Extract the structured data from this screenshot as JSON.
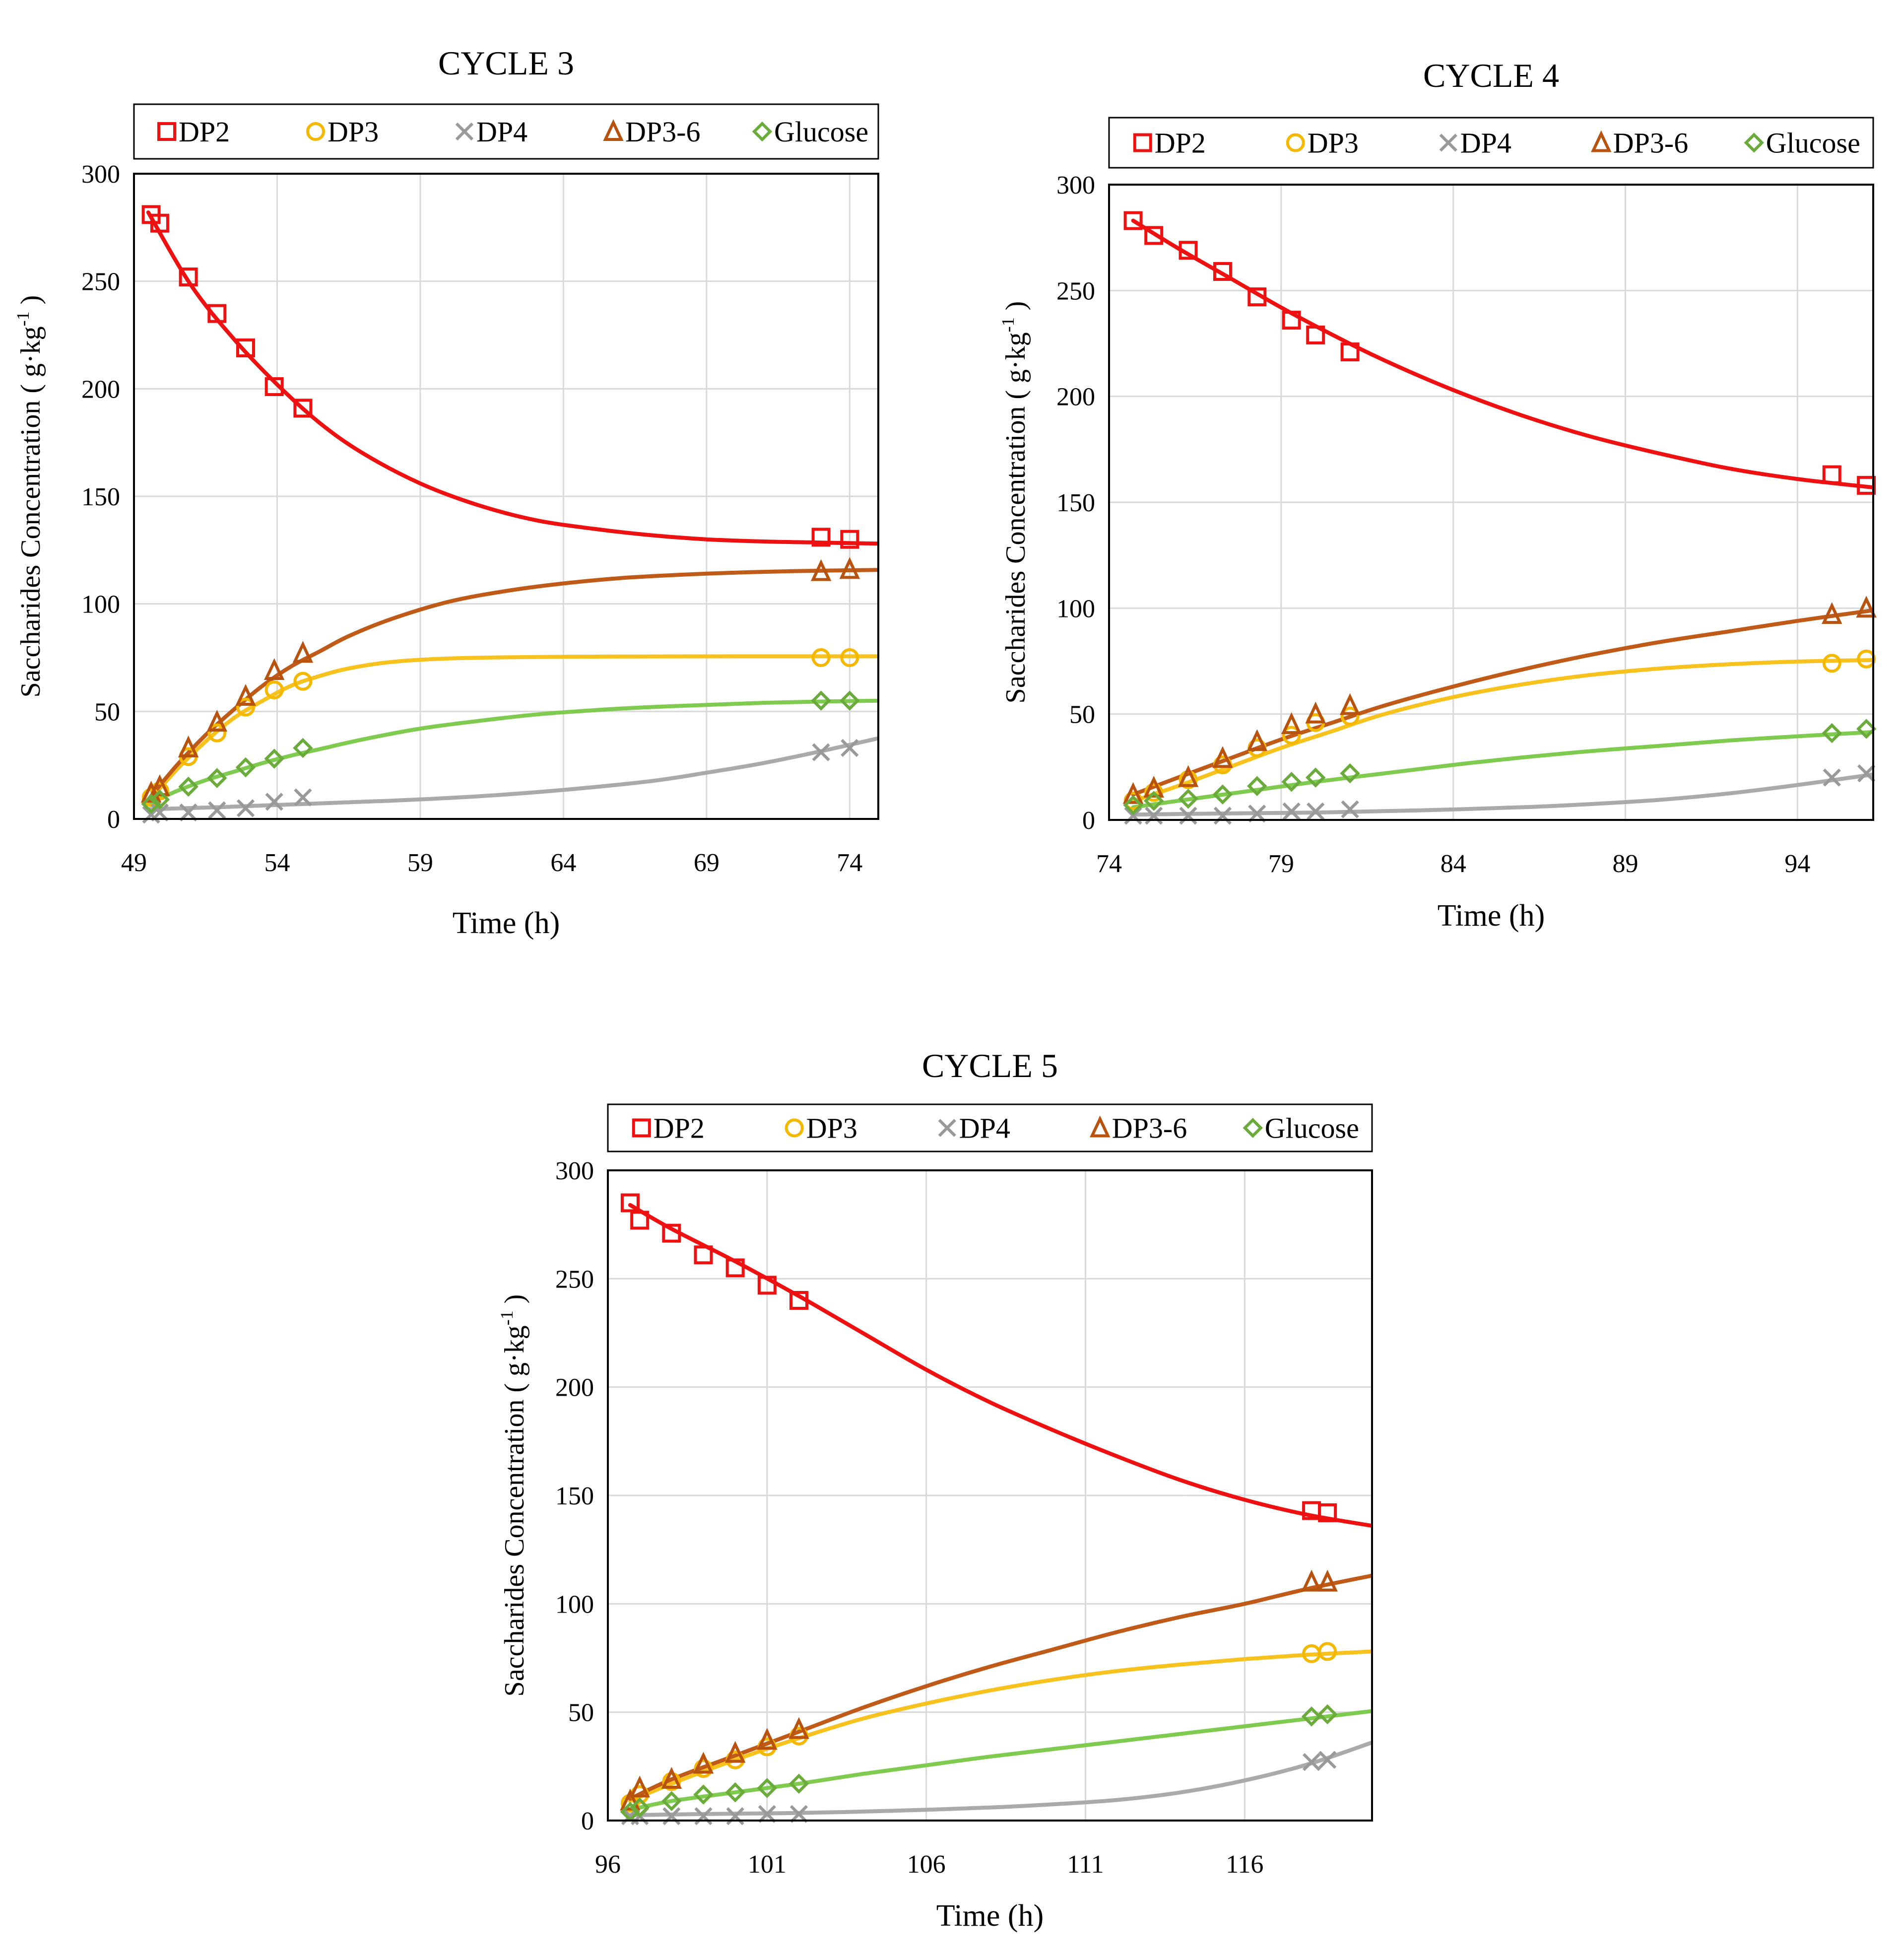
{
  "series_styles": {
    "DP2": {
      "color": "#ee1111",
      "marker": "square"
    },
    "DP3": {
      "color": "#f5b800",
      "marker": "circle"
    },
    "DP4": {
      "color": "#999999",
      "marker": "cross"
    },
    "DP3-6": {
      "color": "#b8520f",
      "marker": "triangle"
    },
    "Glucose": {
      "color": "#6aab3c",
      "marker": "diamond"
    }
  },
  "curve_colors": {
    "DP2": "#ee1111",
    "DP3": "#f8c21e",
    "DP4": "#aaaaaa",
    "DP3-6": "#c05a18",
    "Glucose": "#7ecb4f"
  },
  "chart_data": [
    {
      "type": "scatter",
      "title": "CYCLE 3",
      "xlabel": "Time (h)",
      "ylabel": "Saccharides Concentration ( g·kg",
      "ylabel_sup": "-1",
      "ylabel_end": " )",
      "xlim": [
        49,
        75
      ],
      "ylim": [
        0,
        300
      ],
      "xticks": [
        49,
        54,
        59,
        64,
        69,
        74
      ],
      "yticks": [
        0,
        50,
        100,
        150,
        200,
        250,
        300
      ],
      "grid": true,
      "legend_position": "top",
      "series": [
        {
          "name": "DP2",
          "x": [
            49.6,
            49.9,
            50.9,
            51.9,
            52.9,
            53.9,
            54.9,
            73.0,
            74.0
          ],
          "y": [
            281,
            277,
            252,
            235,
            219,
            201,
            191,
            131,
            130
          ],
          "fit_x": [
            49.5,
            51,
            52.5,
            54,
            55.5,
            57,
            59,
            61,
            63,
            65,
            67,
            69,
            71,
            73,
            75
          ],
          "fit_y": [
            282,
            248,
            223,
            202,
            184,
            170,
            156,
            146,
            139,
            135,
            132,
            130,
            129,
            128.5,
            128
          ]
        },
        {
          "name": "DP3",
          "x": [
            49.6,
            49.9,
            50.9,
            51.9,
            52.9,
            53.9,
            54.9,
            73.0,
            74.0
          ],
          "y": [
            10,
            13,
            29,
            40,
            52,
            60,
            64,
            75,
            75
          ],
          "fit_x": [
            49.5,
            50.5,
            51.5,
            52.5,
            53.5,
            54.5,
            55.5,
            56.5,
            58,
            60,
            63,
            66,
            70,
            75
          ],
          "fit_y": [
            8,
            23,
            36,
            47,
            55,
            62,
            66.5,
            70,
            73,
            74.6,
            75.3,
            75.5,
            75.6,
            75.6
          ]
        },
        {
          "name": "DP4",
          "x": [
            49.6,
            49.9,
            50.9,
            51.9,
            52.9,
            53.9,
            54.9,
            73.0,
            74.0
          ],
          "y": [
            2,
            3,
            3,
            4,
            5,
            8,
            10,
            31,
            33
          ],
          "fit_x": [
            49.5,
            52,
            55,
            58,
            61,
            64,
            67,
            69,
            71,
            73,
            75
          ],
          "fit_y": [
            4.5,
            5.5,
            7,
            8.5,
            10.5,
            13.5,
            17.5,
            21.5,
            26,
            31.5,
            37.5
          ]
        },
        {
          "name": "DP3-6",
          "x": [
            49.6,
            49.9,
            50.9,
            51.9,
            52.9,
            53.9,
            54.9,
            73.0,
            74.0
          ],
          "y": [
            12,
            15,
            33,
            45,
            57,
            69,
            77,
            115,
            116
          ],
          "fit_x": [
            49.5,
            50.5,
            51.5,
            52.5,
            53.5,
            54.5,
            55.5,
            56.5,
            58,
            60,
            62,
            64,
            66,
            68,
            70,
            72,
            75
          ],
          "fit_y": [
            9,
            25,
            39,
            51,
            62,
            71,
            78,
            85,
            93,
            101,
            106,
            109.5,
            112,
            113.5,
            114.5,
            115.2,
            115.8
          ]
        },
        {
          "name": "Glucose",
          "x": [
            49.6,
            49.9,
            50.9,
            51.9,
            52.9,
            53.9,
            54.9,
            73.0,
            74.0
          ],
          "y": [
            7,
            9,
            15,
            19,
            24,
            28,
            33,
            55,
            55
          ],
          "fit_x": [
            49.5,
            50.5,
            51.5,
            52.5,
            53.5,
            54.5,
            55.5,
            57,
            59,
            61,
            63,
            65,
            67,
            69,
            71,
            73,
            75
          ],
          "fit_y": [
            7,
            13,
            18,
            22,
            26,
            29.5,
            32.5,
            37,
            42,
            45.5,
            48.5,
            50.5,
            52,
            53,
            54,
            54.6,
            55
          ]
        }
      ]
    },
    {
      "type": "scatter",
      "title": "CYCLE 4",
      "xlabel": "Time (h)",
      "ylabel": "Saccharides Concentration ( g·kg",
      "ylabel_sup": "-1",
      "ylabel_end": " )",
      "xlim": [
        74,
        96.2
      ],
      "ylim": [
        0,
        300
      ],
      "xticks": [
        74,
        79,
        84,
        89,
        94
      ],
      "yticks": [
        0,
        50,
        100,
        150,
        200,
        250,
        300
      ],
      "grid": true,
      "legend_position": "top",
      "series": [
        {
          "name": "DP2",
          "x": [
            74.7,
            75.3,
            76.3,
            77.3,
            78.3,
            79.3,
            80.0,
            81.0,
            95.0,
            96.0
          ],
          "y": [
            283,
            276,
            269,
            259,
            247,
            236,
            229,
            221,
            163,
            158
          ],
          "fit_x": [
            74.7,
            76,
            77.5,
            79,
            80.5,
            82,
            84,
            86,
            88,
            90,
            92,
            94,
            96.2
          ],
          "fit_y": [
            283,
            270,
            256,
            242,
            229,
            217,
            203,
            191,
            181,
            173,
            166,
            161,
            157
          ]
        },
        {
          "name": "DP3",
          "x": [
            74.7,
            75.3,
            76.3,
            77.3,
            78.3,
            79.3,
            80.0,
            81.0,
            95.0,
            96.0
          ],
          "y": [
            9,
            13,
            19,
            26,
            34,
            40,
            46,
            49,
            74,
            76
          ],
          "fit_x": [
            74.7,
            76,
            77.5,
            79,
            80.5,
            82,
            84,
            86,
            88,
            90,
            92,
            94,
            96.2
          ],
          "fit_y": [
            9,
            16,
            25,
            34,
            42,
            50,
            58,
            64,
            68.5,
            71.5,
            73.5,
            74.8,
            75.5
          ]
        },
        {
          "name": "DP4",
          "x": [
            74.7,
            75.3,
            76.3,
            77.3,
            78.3,
            79.3,
            80.0,
            81.0,
            95.0,
            96.0
          ],
          "y": [
            2,
            2,
            2,
            2,
            3,
            4,
            4,
            5,
            20,
            22
          ],
          "fit_x": [
            74.7,
            77,
            80,
            83,
            86,
            88,
            90,
            92,
            94,
            96.2
          ],
          "fit_y": [
            2.5,
            3,
            3.5,
            4.5,
            6,
            7.5,
            9.5,
            12.5,
            16.5,
            21.5
          ]
        },
        {
          "name": "DP3-6",
          "x": [
            74.7,
            75.3,
            76.3,
            77.3,
            78.3,
            79.3,
            80.0,
            81.0,
            95.0,
            96.0
          ],
          "y": [
            12,
            15,
            20,
            29,
            37,
            45,
            50,
            54,
            97,
            100
          ],
          "fit_x": [
            74.7,
            76,
            77.5,
            79,
            80.5,
            82,
            84,
            86,
            88,
            90,
            92,
            94,
            96.2
          ],
          "fit_y": [
            12,
            20,
            29,
            38,
            46,
            54,
            63,
            71,
            78,
            84,
            89,
            94,
            99
          ]
        },
        {
          "name": "Glucose",
          "x": [
            74.7,
            75.3,
            76.3,
            77.3,
            78.3,
            79.3,
            80.0,
            81.0,
            95.0,
            96.0
          ],
          "y": [
            7,
            9,
            10,
            12,
            16,
            18,
            20,
            22,
            41,
            43
          ],
          "fit_x": [
            74.7,
            76,
            78,
            80,
            82,
            84,
            86,
            88,
            90,
            92,
            94,
            96.2
          ],
          "fit_y": [
            6,
            9,
            13.5,
            18,
            22,
            26,
            29.5,
            32.5,
            35,
            37.5,
            39.5,
            41.5
          ]
        }
      ]
    },
    {
      "type": "scatter",
      "title": "CYCLE 5",
      "xlabel": "Time (h)",
      "ylabel": "Saccharides Concentration ( g·kg",
      "ylabel_sup": "-1",
      "ylabel_end": " )",
      "xlim": [
        96,
        120
      ],
      "ylim": [
        0,
        300
      ],
      "xticks": [
        96,
        101,
        106,
        111,
        116
      ],
      "yticks": [
        0,
        50,
        100,
        150,
        200,
        250,
        300
      ],
      "grid": true,
      "legend_position": "top",
      "series": [
        {
          "name": "DP2",
          "x": [
            96.7,
            97.0,
            98.0,
            99.0,
            100.0,
            101.0,
            102.0,
            118.1,
            118.6
          ],
          "y": [
            285,
            277,
            271,
            261,
            255,
            247,
            240,
            143,
            142
          ],
          "fit_x": [
            96.7,
            98,
            100,
            102,
            104,
            106,
            108,
            110,
            112,
            114,
            116,
            118,
            120
          ],
          "fit_y": [
            284,
            273,
            258,
            242,
            225,
            208,
            193,
            180,
            168,
            157,
            148,
            141,
            136
          ]
        },
        {
          "name": "DP3",
          "x": [
            96.7,
            97.0,
            98.0,
            99.0,
            100.0,
            101.0,
            102.0,
            118.1,
            118.6
          ],
          "y": [
            8,
            12,
            18,
            24,
            28,
            34,
            39,
            77,
            78
          ],
          "fit_x": [
            96.7,
            98,
            100,
            102,
            104,
            106,
            108,
            110,
            112,
            114,
            116,
            118,
            120
          ],
          "fit_y": [
            9,
            17,
            28,
            38,
            47,
            54,
            60,
            65,
            69,
            72,
            74.5,
            76.5,
            78
          ]
        },
        {
          "name": "DP4",
          "x": [
            96.7,
            97.0,
            98.0,
            99.0,
            100.0,
            101.0,
            102.0,
            118.1,
            118.6
          ],
          "y": [
            2,
            2,
            2,
            2,
            2,
            3,
            3,
            27,
            28
          ],
          "fit_x": [
            96.7,
            99,
            102,
            105,
            108,
            110,
            112,
            114,
            116,
            118,
            120
          ],
          "fit_y": [
            2.5,
            3,
            3.5,
            4.5,
            6,
            7.5,
            9.5,
            13,
            18.5,
            26,
            36
          ]
        },
        {
          "name": "DP3-6",
          "x": [
            96.7,
            97.0,
            98.0,
            99.0,
            100.0,
            101.0,
            102.0,
            118.1,
            118.6
          ],
          "y": [
            9,
            15,
            19,
            26,
            31,
            37,
            42,
            110,
            110
          ],
          "fit_x": [
            96.7,
            98,
            100,
            102,
            104,
            106,
            108,
            110,
            112,
            114,
            116,
            118,
            120
          ],
          "fit_y": [
            10,
            19,
            30,
            41,
            52,
            62,
            71,
            79,
            87,
            94,
            100,
            107,
            113
          ]
        },
        {
          "name": "Glucose",
          "x": [
            96.7,
            97.0,
            98.0,
            99.0,
            100.0,
            101.0,
            102.0,
            118.1,
            118.6
          ],
          "y": [
            4,
            6,
            9,
            12,
            13,
            15,
            17,
            48,
            49
          ],
          "fit_x": [
            96.7,
            98,
            100,
            102,
            104,
            106,
            108,
            110,
            112,
            114,
            116,
            118,
            120
          ],
          "fit_y": [
            5,
            9,
            13,
            17,
            21.5,
            25.5,
            29.5,
            33,
            36.5,
            40,
            43.5,
            47,
            50.5
          ]
        }
      ]
    }
  ]
}
